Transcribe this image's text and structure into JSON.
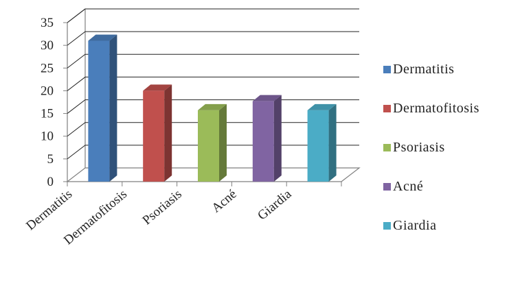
{
  "chart_data": {
    "type": "bar",
    "three_d": true,
    "categories": [
      "Dermatitis",
      "Dermatofitosis",
      "Psoriasis",
      "Acné",
      "Giardia"
    ],
    "values": [
      31,
      20,
      15.7,
      17.7,
      15.7
    ],
    "colors": [
      "#4a7ebb",
      "#c0504d",
      "#9bbb59",
      "#8064a2",
      "#4bacc6"
    ],
    "title": "",
    "xlabel": "",
    "ylabel": "",
    "ylim": [
      0,
      35
    ],
    "yticks": [
      0,
      5,
      10,
      15,
      20,
      25,
      30,
      35
    ],
    "grid": true,
    "legend": {
      "position": "right",
      "entries": [
        "Dermatitis",
        "Dermatofitosis",
        "Psoriasis",
        "Acné",
        "Giardia"
      ]
    }
  }
}
